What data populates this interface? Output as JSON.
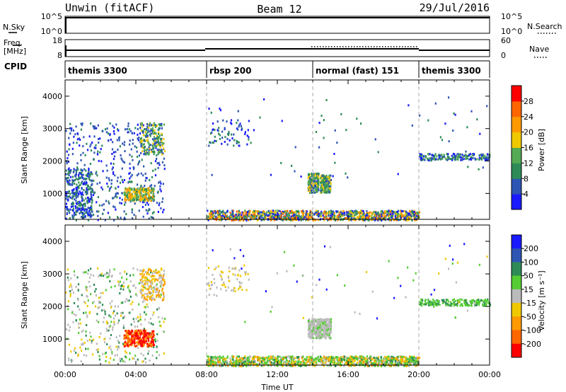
{
  "header": {
    "radar": "Unwin (fitACF)",
    "beam": "Beam 12",
    "date": "29/Jul/2016"
  },
  "nsky_panel": {
    "left_label": "N.Sky",
    "tick_top": "10^5",
    "tick_bottom": "10^0",
    "right_label": "N.Search",
    "right_tick_top": "10^5",
    "right_tick_bottom": "10^0"
  },
  "freq_panel": {
    "left_label_1": "Freq.",
    "left_label_2": "[MHz]",
    "tick_top": "18",
    "tick_bottom": "8",
    "right_label": "Nave",
    "right_tick_top": "60",
    "right_tick_bottom": "0"
  },
  "cpid_panel": {
    "label": "CPID",
    "segments": [
      {
        "name": "themis 3300",
        "start_hour": 0,
        "end_hour": 8
      },
      {
        "name": "rbsp 200",
        "start_hour": 8,
        "end_hour": 14
      },
      {
        "name": "normal (fast) 151",
        "start_hour": 14,
        "end_hour": 20
      },
      {
        "name": "themis 3300",
        "start_hour": 20,
        "end_hour": 24
      }
    ]
  },
  "chart_data": [
    {
      "type": "heatmap",
      "title": "",
      "xlabel": "",
      "ylabel": "Slant Range [km]",
      "xlim": [
        0,
        24
      ],
      "ylim": [
        200,
        4500
      ],
      "yticks": [
        "1000",
        "2000",
        "3000",
        "4000"
      ],
      "colorbar_label": "Power [dB]",
      "colorbar_ticks": [
        "4",
        "8",
        "12",
        "16",
        "20",
        "24",
        "28"
      ],
      "colorbar_colors": [
        "#1a1aff",
        "#2d55b4",
        "#2e8b57",
        "#55aa55",
        "#f0c800",
        "#ff9900",
        "#ff6600",
        "#ff0000"
      ],
      "dominant_value": "8",
      "regions": [
        {
          "t0": 0.0,
          "t1": 5.6,
          "r0": 200,
          "r1": 3200,
          "value": "4-12"
        },
        {
          "t0": 3.3,
          "t1": 5.0,
          "r0": 800,
          "r1": 1200,
          "value": "16-24"
        },
        {
          "t0": 13.7,
          "t1": 15.0,
          "r0": 1050,
          "r1": 1650,
          "value": "12-20"
        },
        {
          "t0": 8.0,
          "t1": 20.0,
          "r0": 200,
          "r1": 500,
          "value": "8-20"
        },
        {
          "t0": 20.0,
          "t1": 24.0,
          "r0": 2050,
          "r1": 2250,
          "value": "8-12"
        }
      ]
    },
    {
      "type": "heatmap",
      "title": "",
      "xlabel": "Time UT",
      "ylabel": "Slant Range [km]",
      "xlim": [
        0,
        24
      ],
      "ylim": [
        200,
        4500
      ],
      "xticks": [
        "00:00",
        "04:00",
        "08:00",
        "12:00",
        "16:00",
        "20:00",
        "00:00"
      ],
      "yticks": [
        "1000",
        "2000",
        "3000",
        "4000"
      ],
      "colorbar_label": "Velocity [m s⁻¹]",
      "colorbar_ticks": [
        "200",
        "100",
        "50",
        "15",
        "-15",
        "-50",
        "-100",
        "-200"
      ],
      "colorbar_colors": [
        "#1a1aff",
        "#2d55b4",
        "#2e8b57",
        "#55cc33",
        "#bbbbbb",
        "#f0c800",
        "#ff9900",
        "#ff6600",
        "#ff0000"
      ],
      "regions": [
        {
          "t0": 0.0,
          "t1": 5.6,
          "r0": 300,
          "r1": 3200,
          "value": "-15 to 15"
        },
        {
          "t0": 3.3,
          "t1": 5.0,
          "r0": 800,
          "r1": 1300,
          "value": "-200 to -100"
        },
        {
          "t0": 13.7,
          "t1": 15.0,
          "r0": 1050,
          "r1": 1650,
          "value": "-15 to 15"
        },
        {
          "t0": 8.0,
          "t1": 20.0,
          "r0": 200,
          "r1": 500,
          "value": "15 to 100"
        },
        {
          "t0": 20.0,
          "t1": 24.0,
          "r0": 2050,
          "r1": 2250,
          "value": "15 to 50"
        }
      ]
    }
  ]
}
